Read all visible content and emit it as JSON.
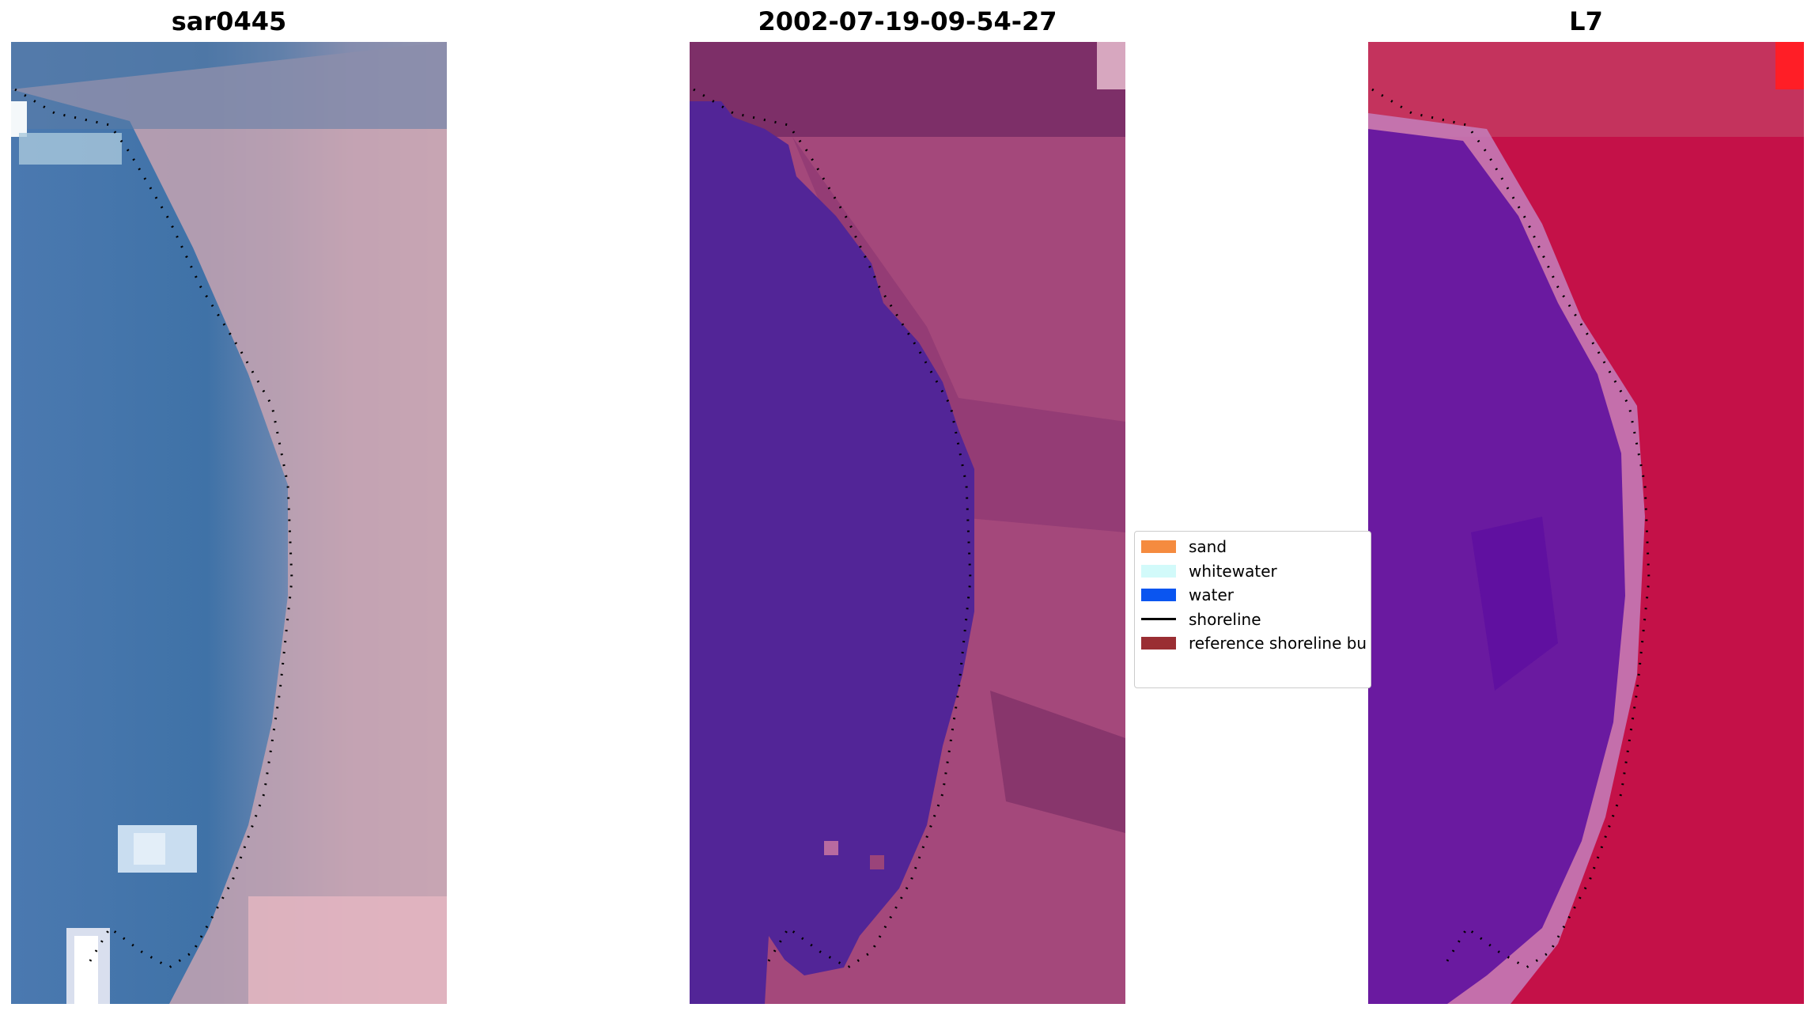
{
  "panels": [
    {
      "title": "sar0445"
    },
    {
      "title": "2002-07-19-09-54-27"
    },
    {
      "title": "L7"
    }
  ],
  "legend": {
    "items": [
      {
        "label": "sand",
        "color": "#f58b3f",
        "kind": "patch"
      },
      {
        "label": "whitewater",
        "color": "#d2fafa",
        "kind": "patch"
      },
      {
        "label": "water",
        "color": "#0a55f0",
        "kind": "patch"
      },
      {
        "label": "shoreline",
        "color": "#000000",
        "kind": "line"
      },
      {
        "label": "reference shoreline bu",
        "color": "#9a2e33",
        "kind": "patch"
      }
    ]
  },
  "colors": {
    "sar_water": "#3f72a7",
    "sar_land": "#c6a3b2",
    "class_water": "#522597",
    "class_land": "#a4487b",
    "l7_water": "#6a1aa0",
    "l7_land": "#c41148"
  }
}
